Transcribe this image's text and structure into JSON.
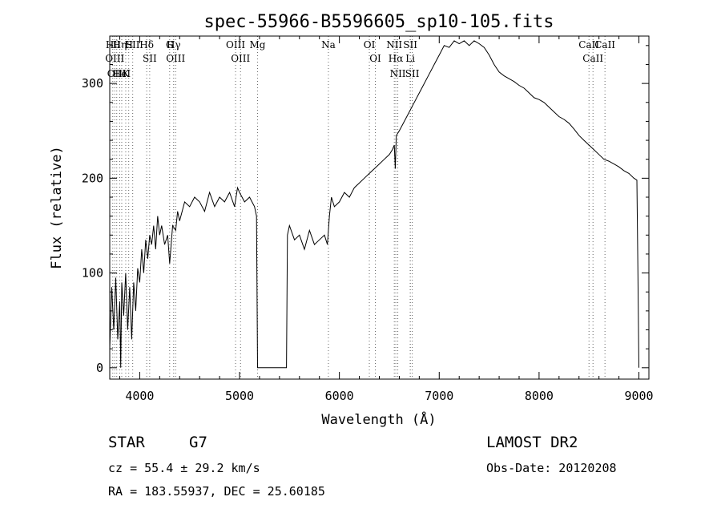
{
  "chart_data": {
    "type": "line",
    "title": "spec-55966-B5596605_sp10-105.fits",
    "xlabel": "Wavelength (Å)",
    "ylabel": "Flux (relative)",
    "xlim": [
      3700,
      9100
    ],
    "ylim": [
      -12,
      350
    ],
    "x_ticks": [
      4000,
      5000,
      6000,
      7000,
      8000,
      9000
    ],
    "y_ticks": [
      0,
      100,
      200,
      300
    ],
    "grid": false,
    "series": [
      {
        "values": [
          [
            3700,
            20
          ],
          [
            3720,
            85
          ],
          [
            3740,
            40
          ],
          [
            3760,
            95
          ],
          [
            3780,
            30
          ],
          [
            3800,
            70
          ],
          [
            3810,
            0
          ],
          [
            3820,
            90
          ],
          [
            3840,
            55
          ],
          [
            3860,
            100
          ],
          [
            3880,
            40
          ],
          [
            3900,
            85
          ],
          [
            3920,
            30
          ],
          [
            3940,
            90
          ],
          [
            3960,
            60
          ],
          [
            3980,
            105
          ],
          [
            4000,
            90
          ],
          [
            4020,
            125
          ],
          [
            4040,
            100
          ],
          [
            4060,
            135
          ],
          [
            4080,
            115
          ],
          [
            4100,
            140
          ],
          [
            4120,
            130
          ],
          [
            4140,
            150
          ],
          [
            4160,
            125
          ],
          [
            4180,
            160
          ],
          [
            4200,
            140
          ],
          [
            4220,
            150
          ],
          [
            4250,
            130
          ],
          [
            4280,
            140
          ],
          [
            4300,
            110
          ],
          [
            4330,
            150
          ],
          [
            4360,
            145
          ],
          [
            4380,
            165
          ],
          [
            4400,
            155
          ],
          [
            4450,
            175
          ],
          [
            4500,
            170
          ],
          [
            4550,
            180
          ],
          [
            4600,
            175
          ],
          [
            4650,
            165
          ],
          [
            4700,
            185
          ],
          [
            4750,
            170
          ],
          [
            4800,
            180
          ],
          [
            4850,
            175
          ],
          [
            4900,
            185
          ],
          [
            4950,
            170
          ],
          [
            4980,
            190
          ],
          [
            5000,
            185
          ],
          [
            5050,
            175
          ],
          [
            5100,
            180
          ],
          [
            5150,
            170
          ],
          [
            5170,
            160
          ],
          [
            5180,
            0
          ],
          [
            5470,
            0
          ],
          [
            5480,
            140
          ],
          [
            5500,
            150
          ],
          [
            5550,
            135
          ],
          [
            5600,
            140
          ],
          [
            5650,
            125
          ],
          [
            5700,
            145
          ],
          [
            5750,
            130
          ],
          [
            5800,
            135
          ],
          [
            5850,
            140
          ],
          [
            5880,
            130
          ],
          [
            5900,
            160
          ],
          [
            5920,
            180
          ],
          [
            5950,
            170
          ],
          [
            6000,
            175
          ],
          [
            6050,
            185
          ],
          [
            6100,
            180
          ],
          [
            6150,
            190
          ],
          [
            6200,
            195
          ],
          [
            6250,
            200
          ],
          [
            6300,
            205
          ],
          [
            6350,
            210
          ],
          [
            6400,
            215
          ],
          [
            6450,
            220
          ],
          [
            6500,
            225
          ],
          [
            6530,
            230
          ],
          [
            6550,
            235
          ],
          [
            6560,
            210
          ],
          [
            6570,
            245
          ],
          [
            6600,
            250
          ],
          [
            6650,
            260
          ],
          [
            6700,
            270
          ],
          [
            6750,
            280
          ],
          [
            6800,
            290
          ],
          [
            6850,
            300
          ],
          [
            6900,
            310
          ],
          [
            6950,
            320
          ],
          [
            7000,
            330
          ],
          [
            7050,
            340
          ],
          [
            7100,
            338
          ],
          [
            7150,
            345
          ],
          [
            7200,
            342
          ],
          [
            7250,
            345
          ],
          [
            7300,
            340
          ],
          [
            7350,
            345
          ],
          [
            7400,
            342
          ],
          [
            7450,
            338
          ],
          [
            7500,
            330
          ],
          [
            7550,
            320
          ],
          [
            7600,
            312
          ],
          [
            7650,
            308
          ],
          [
            7700,
            305
          ],
          [
            7750,
            302
          ],
          [
            7800,
            298
          ],
          [
            7850,
            295
          ],
          [
            7900,
            290
          ],
          [
            7950,
            285
          ],
          [
            8000,
            283
          ],
          [
            8050,
            280
          ],
          [
            8100,
            275
          ],
          [
            8150,
            270
          ],
          [
            8200,
            265
          ],
          [
            8250,
            262
          ],
          [
            8300,
            258
          ],
          [
            8350,
            252
          ],
          [
            8400,
            245
          ],
          [
            8450,
            240
          ],
          [
            8500,
            235
          ],
          [
            8550,
            230
          ],
          [
            8600,
            225
          ],
          [
            8650,
            220
          ],
          [
            8700,
            218
          ],
          [
            8750,
            215
          ],
          [
            8800,
            212
          ],
          [
            8850,
            208
          ],
          [
            8900,
            205
          ],
          [
            8950,
            200
          ],
          [
            8980,
            198
          ],
          [
            8990,
            100
          ],
          [
            9000,
            0
          ]
        ]
      }
    ],
    "line_markers": [
      {
        "x": 3730,
        "label": "Hθ"
      },
      {
        "x": 3750,
        "label": "OIII"
      },
      {
        "x": 3770,
        "label": "OIII"
      },
      {
        "x": 3800,
        "label": "Hη"
      },
      {
        "x": 3820,
        "label": "HeI"
      },
      {
        "x": 3860,
        "label": "K"
      },
      {
        "x": 3890,
        "label": "H"
      },
      {
        "x": 3930,
        "label": "SII"
      },
      {
        "x": 4070,
        "label": "Hδ"
      },
      {
        "x": 4100,
        "label": "SII"
      },
      {
        "x": 4300,
        "label": "G"
      },
      {
        "x": 4340,
        "label": "Hγ"
      },
      {
        "x": 4360,
        "label": "OIII"
      },
      {
        "x": 4960,
        "label": "OIII"
      },
      {
        "x": 5010,
        "label": "OIII"
      },
      {
        "x": 5180,
        "label": "Mg"
      },
      {
        "x": 5890,
        "label": "Na"
      },
      {
        "x": 6300,
        "label": "OI"
      },
      {
        "x": 6360,
        "label": "OI"
      },
      {
        "x": 6550,
        "label": "NII"
      },
      {
        "x": 6565,
        "label": "Hα"
      },
      {
        "x": 6585,
        "label": "NII"
      },
      {
        "x": 6710,
        "label": "SII"
      },
      {
        "x": 6710,
        "label": "Li"
      },
      {
        "x": 6730,
        "label": "SII"
      },
      {
        "x": 8500,
        "label": "CaII"
      },
      {
        "x": 8540,
        "label": "CaII"
      },
      {
        "x": 8660,
        "label": "CaII"
      }
    ]
  },
  "info": {
    "object_class": "STAR",
    "subclass": "G7",
    "survey": "LAMOST DR2",
    "cz": "cz = 55.4 ± 29.2 km/s",
    "obs_date": "Obs-Date: 20120208",
    "coords": "RA = 183.55937, DEC =  25.60185"
  }
}
